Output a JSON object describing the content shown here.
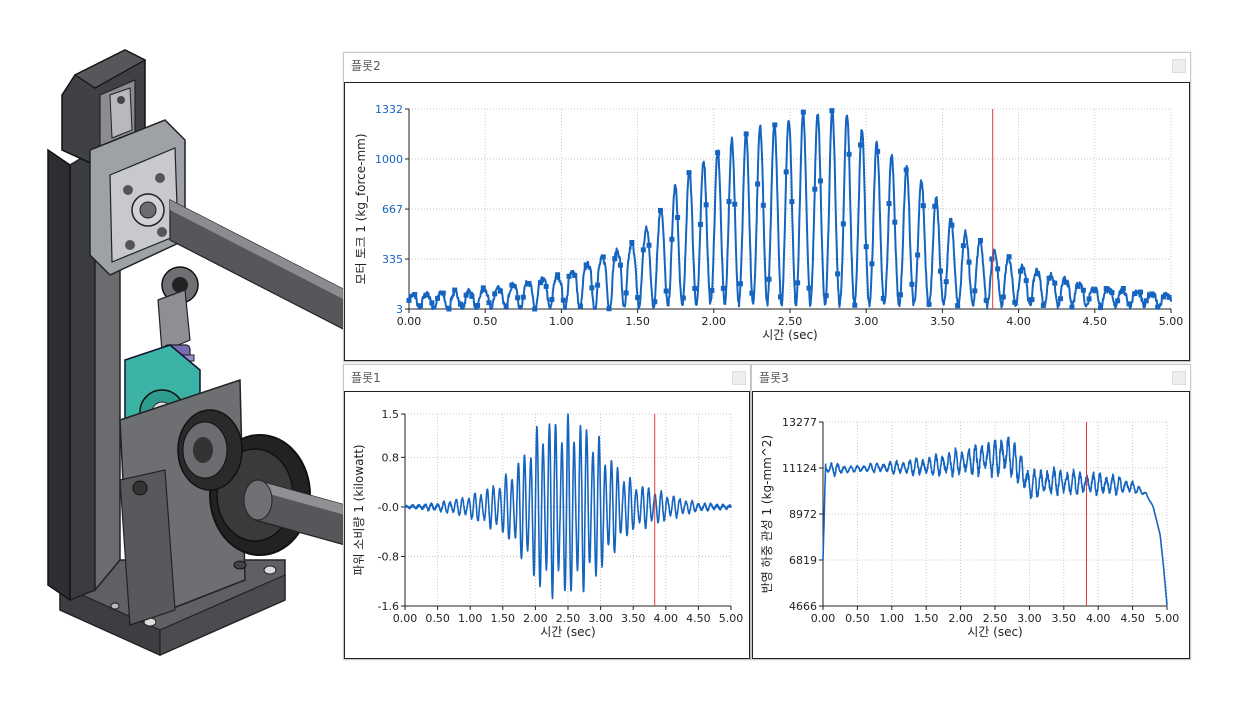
{
  "colors": {
    "series": "#1565C0",
    "cursor": "#e53935",
    "grid": "#bdbdbd",
    "axis": "#222222",
    "tick_text": "#222222"
  },
  "model": {
    "icon": "mechanism-3d-model"
  },
  "panels": [
    {
      "title": "플롯2",
      "minimize_icon": "minimize-icon"
    },
    {
      "title": "플롯1",
      "minimize_icon": "minimize-icon"
    },
    {
      "title": "플롯3",
      "minimize_icon": "minimize-icon"
    }
  ],
  "chart_data": [
    {
      "type": "line",
      "xlabel": "시간 (sec)",
      "ylabel": "모터 토크 1 (kg_force-mm)",
      "xlim": [
        0,
        5
      ],
      "ylim": [
        3,
        1332
      ],
      "xticks": [
        "0.00",
        "0.50",
        "1.00",
        "1.50",
        "2.00",
        "2.50",
        "3.00",
        "3.50",
        "4.00",
        "4.50",
        "5.00"
      ],
      "yticks": [
        "3",
        "335",
        "667",
        "1000",
        "1332"
      ],
      "cursor_x": 3.83,
      "markers": true,
      "grid": true,
      "series": [
        {
          "envelope": [
            [
              0,
              90
            ],
            [
              0.5,
              130
            ],
            [
              1.0,
              220
            ],
            [
              1.5,
              450
            ],
            [
              1.8,
              900
            ],
            [
              2.2,
              1180
            ],
            [
              2.6,
              1300
            ],
            [
              2.85,
              1320
            ],
            [
              3.0,
              1170
            ],
            [
              3.4,
              820
            ],
            [
              3.6,
              540
            ],
            [
              4.0,
              300
            ],
            [
              4.5,
              140
            ],
            [
              5.0,
              90
            ]
          ],
          "center": [
            [
              0,
              80
            ],
            [
              0.3,
              75
            ],
            [
              0.6,
              110
            ],
            [
              1.0,
              180
            ],
            [
              1.4,
              300
            ],
            [
              1.7,
              380
            ],
            [
              2.0,
              500
            ],
            [
              2.5,
              620
            ],
            [
              2.9,
              560
            ],
            [
              3.2,
              440
            ],
            [
              3.5,
              330
            ],
            [
              4.0,
              200
            ],
            [
              4.5,
              120
            ],
            [
              5.0,
              80
            ]
          ],
          "offset": [
            [
              0,
              3
            ],
            [
              1.0,
              3
            ],
            [
              1.3,
              3
            ],
            [
              1.7,
              20
            ],
            [
              2.0,
              40
            ],
            [
              5.0,
              20
            ]
          ],
          "frequency_hz": 10.5
        }
      ]
    },
    {
      "type": "line",
      "xlabel": "시간 (sec)",
      "ylabel": "파워 소비량 1 (kilowatt)",
      "xlim": [
        0,
        5
      ],
      "ylim": [
        -1.6,
        1.5
      ],
      "xticks": [
        "0.00",
        "0.50",
        "1.00",
        "1.50",
        "2.00",
        "2.50",
        "3.00",
        "3.50",
        "4.00",
        "4.50",
        "5.00"
      ],
      "yticks": [
        "1.5",
        "0.8",
        "-0.0",
        "-0.8",
        "-1.6"
      ],
      "cursor_x": 3.83,
      "grid": true,
      "series": [
        {
          "envelope": [
            [
              0,
              0.01
            ],
            [
              0.5,
              0.06
            ],
            [
              0.9,
              0.15
            ],
            [
              1.2,
              0.28
            ],
            [
              1.5,
              0.45
            ],
            [
              1.8,
              0.85
            ],
            [
              2.1,
              1.45
            ],
            [
              2.6,
              1.5
            ],
            [
              2.9,
              1.25
            ],
            [
              3.2,
              0.75
            ],
            [
              3.5,
              0.4
            ],
            [
              3.8,
              0.3
            ],
            [
              4.2,
              0.15
            ],
            [
              4.5,
              0.06
            ],
            [
              5.0,
              0.02
            ]
          ],
          "center": [
            [
              0,
              0
            ],
            [
              5,
              0
            ]
          ],
          "frequency_hz": 10.5
        }
      ]
    },
    {
      "type": "line",
      "xlabel": "시간 (sec)",
      "ylabel": "반영 하중 관성 1 (kg-mm^2)",
      "xlim": [
        0,
        5
      ],
      "ylim": [
        4666,
        13277
      ],
      "xticks": [
        "0.00",
        "0.50",
        "1.00",
        "1.50",
        "2.00",
        "2.50",
        "3.00",
        "3.50",
        "4.00",
        "4.50",
        "5.00"
      ],
      "yticks": [
        "13277",
        "11124",
        "8972",
        "6819",
        "4666"
      ],
      "cursor_x": 3.83,
      "grid": true,
      "series": [
        {
          "center": [
            [
              0,
              11100
            ],
            [
              0.3,
              11050
            ],
            [
              0.8,
              11150
            ],
            [
              1.2,
              11150
            ],
            [
              1.7,
              11250
            ],
            [
              2.0,
              11400
            ],
            [
              2.5,
              11600
            ],
            [
              2.7,
              11800
            ],
            [
              2.85,
              11200
            ],
            [
              3.0,
              10300
            ],
            [
              3.3,
              10500
            ],
            [
              3.8,
              10400
            ],
            [
              4.2,
              10350
            ],
            [
              4.5,
              10250
            ],
            [
              4.7,
              9900
            ],
            [
              4.8,
              9300
            ],
            [
              4.9,
              8000
            ],
            [
              4.95,
              6500
            ],
            [
              5.0,
              4700
            ]
          ],
          "amplitude": [
            [
              0,
              0
            ],
            [
              0.15,
              300
            ],
            [
              0.4,
              120
            ],
            [
              1.0,
              250
            ],
            [
              1.5,
              400
            ],
            [
              2.0,
              600
            ],
            [
              2.5,
              800
            ],
            [
              2.7,
              900
            ],
            [
              3.0,
              650
            ],
            [
              3.6,
              550
            ],
            [
              4.3,
              400
            ],
            [
              4.6,
              150
            ],
            [
              4.8,
              0
            ],
            [
              5.0,
              0
            ]
          ],
          "frequency_hz": 10.5
        }
      ]
    }
  ]
}
